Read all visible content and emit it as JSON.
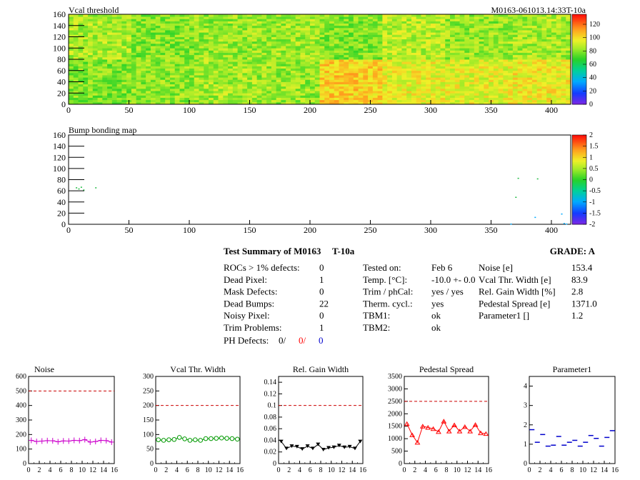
{
  "header": {
    "plot1_title": "Vcal threshold",
    "module_id": "M0163-061013.14:33T-10a",
    "plot2_title": "Bump bonding map"
  },
  "colors": {
    "red": "#ff0000",
    "blue": "#0000cc",
    "magenta": "#cc00cc",
    "green": "#009900",
    "black": "#000000",
    "dashed": "#cc0000"
  },
  "summary": {
    "title": "Test Summary of M0163",
    "temp_id": "T-10a",
    "grade_label": "GRADE:  A",
    "left_rows": [
      {
        "label": "ROCs > 1% defects:",
        "value": "0"
      },
      {
        "label": "Dead Pixel:",
        "value": "1"
      },
      {
        "label": "Mask Defects:",
        "value": "0"
      },
      {
        "label": "Dead Bumps:",
        "value": "22"
      },
      {
        "label": "Noisy Pixel:",
        "value": "0"
      },
      {
        "label": "Trim Problems:",
        "value": "1"
      }
    ],
    "ph_defects_label": "PH Defects:",
    "ph_defects": [
      "0/",
      "0/",
      "0"
    ],
    "mid_rows": [
      {
        "label": "Tested on:",
        "value": "Feb 6"
      },
      {
        "label": "Temp. [°C]:",
        "value": "-10.0 +- 0.0"
      },
      {
        "label": "Trim / phCal:",
        "value": "yes / yes"
      },
      {
        "label": "Therm. cycl.:",
        "value": "yes"
      },
      {
        "label": "TBM1:",
        "value": "ok"
      },
      {
        "label": "TBM2:",
        "value": "ok"
      }
    ],
    "right_rows": [
      {
        "label": "Noise [e]",
        "value": "153.4"
      },
      {
        "label": "Vcal Thr. Width [e]",
        "value": "83.9"
      },
      {
        "label": "Rel. Gain Width [%]",
        "value": "2.8"
      },
      {
        "label": "Pedestal Spread [e]",
        "value": "1371.0"
      },
      {
        "label": "Parameter1 []",
        "value": "1.2"
      }
    ]
  },
  "chart_data": [
    {
      "type": "heatmap",
      "title": "Vcal threshold",
      "xlim": [
        0,
        416
      ],
      "ylim": [
        0,
        160
      ],
      "xticks": [
        0,
        50,
        100,
        150,
        200,
        250,
        300,
        350,
        400
      ],
      "yticks": [
        0,
        20,
        40,
        60,
        80,
        100,
        120,
        140,
        160
      ],
      "zticks": [
        0,
        20,
        40,
        60,
        80,
        100,
        120
      ],
      "zlim": [
        0,
        135
      ],
      "roc_means": [
        [
          80,
          82,
          85,
          83,
          104,
          96,
          95,
          98
        ],
        [
          86,
          80,
          83,
          84,
          80,
          88,
          82,
          85
        ]
      ]
    },
    {
      "type": "scatter",
      "title": "Bump bonding map",
      "xlim": [
        0,
        416
      ],
      "ylim": [
        0,
        160
      ],
      "xticks": [
        0,
        50,
        100,
        150,
        200,
        250,
        300,
        350,
        400
      ],
      "yticks": [
        0,
        20,
        40,
        60,
        80,
        100,
        120,
        140,
        160
      ],
      "zticks": [
        "2",
        "1.5",
        "1",
        "0.5",
        "0",
        "-0.5",
        "-1",
        "-1.5",
        "-2"
      ],
      "points": [
        [
          6,
          65
        ],
        [
          8,
          63
        ],
        [
          10,
          66
        ],
        [
          12,
          61
        ],
        [
          22,
          65
        ],
        [
          372,
          82
        ],
        [
          388,
          81
        ],
        [
          370,
          48
        ],
        [
          386,
          12
        ],
        [
          408,
          18
        ],
        [
          410,
          1
        ],
        [
          412,
          0
        ],
        [
          366,
          0
        ]
      ]
    },
    {
      "type": "line",
      "title": "Noise",
      "x": [
        0,
        1,
        2,
        3,
        4,
        5,
        6,
        7,
        8,
        9,
        10,
        11,
        12,
        13,
        14,
        15
      ],
      "y": [
        160,
        152,
        155,
        158,
        157,
        150,
        156,
        155,
        160,
        158,
        165,
        148,
        152,
        160,
        158,
        148
      ],
      "xlim": [
        0,
        16
      ],
      "ylim": [
        0,
        600
      ],
      "yticks": [
        0,
        100,
        200,
        300,
        400,
        500,
        600
      ],
      "xticks": [
        0,
        2,
        4,
        6,
        8,
        10,
        12,
        14,
        16
      ],
      "threshold": 500
    },
    {
      "type": "line",
      "title": "Vcal Thr. Width",
      "x": [
        0,
        1,
        2,
        3,
        4,
        5,
        6,
        7,
        8,
        9,
        10,
        11,
        12,
        13,
        14,
        15
      ],
      "y": [
        82,
        80,
        82,
        83,
        90,
        85,
        80,
        82,
        80,
        86,
        86,
        87,
        88,
        87,
        86,
        84
      ],
      "xlim": [
        0,
        16
      ],
      "ylim": [
        0,
        300
      ],
      "yticks": [
        0,
        50,
        100,
        150,
        200,
        250,
        300
      ],
      "xticks": [
        0,
        2,
        4,
        6,
        8,
        10,
        12,
        14,
        16
      ],
      "threshold": 200
    },
    {
      "type": "line",
      "title": "Rel. Gain Width",
      "x": [
        0,
        1,
        2,
        3,
        4,
        5,
        6,
        7,
        8,
        9,
        10,
        11,
        12,
        13,
        14,
        15
      ],
      "y": [
        0.038,
        0.026,
        0.03,
        0.029,
        0.025,
        0.03,
        0.026,
        0.033,
        0.024,
        0.027,
        0.028,
        0.031,
        0.028,
        0.029,
        0.026,
        0.038
      ],
      "xlim": [
        0,
        16
      ],
      "ylim": [
        0,
        0.15
      ],
      "yticks": [
        0,
        0.02,
        0.04,
        0.06,
        0.08,
        0.1,
        0.12,
        0.14
      ],
      "xticks": [
        0,
        2,
        4,
        6,
        8,
        10,
        12,
        14,
        16
      ],
      "threshold": 0.1
    },
    {
      "type": "line",
      "title": "Pedestal Spread",
      "x": [
        0,
        1,
        2,
        3,
        4,
        5,
        6,
        7,
        8,
        9,
        10,
        11,
        12,
        13,
        14,
        15
      ],
      "y": [
        1600,
        1150,
        850,
        1500,
        1450,
        1400,
        1280,
        1700,
        1300,
        1550,
        1300,
        1480,
        1300,
        1560,
        1230,
        1200
      ],
      "xlim": [
        0,
        16
      ],
      "ylim": [
        0,
        3500
      ],
      "yticks": [
        0,
        500,
        1000,
        1500,
        2000,
        2500,
        3000,
        3500
      ],
      "xticks": [
        0,
        2,
        4,
        6,
        8,
        10,
        12,
        14,
        16
      ],
      "threshold": 2500
    },
    {
      "type": "scatter",
      "title": "Parameter1",
      "x": [
        0,
        1,
        2,
        3,
        4,
        5,
        6,
        7,
        8,
        9,
        10,
        11,
        12,
        13,
        14,
        15
      ],
      "y": [
        1.75,
        1.1,
        1.5,
        0.9,
        0.95,
        1.4,
        0.95,
        1.1,
        1.2,
        0.9,
        1.1,
        1.45,
        1.3,
        0.9,
        1.35,
        1.7
      ],
      "xlim": [
        0,
        16
      ],
      "ylim": [
        0,
        4.5
      ],
      "yticks": [
        0,
        1,
        2,
        3,
        4
      ],
      "xticks": [
        0,
        2,
        4,
        6,
        8,
        10,
        12,
        14,
        16
      ]
    }
  ]
}
